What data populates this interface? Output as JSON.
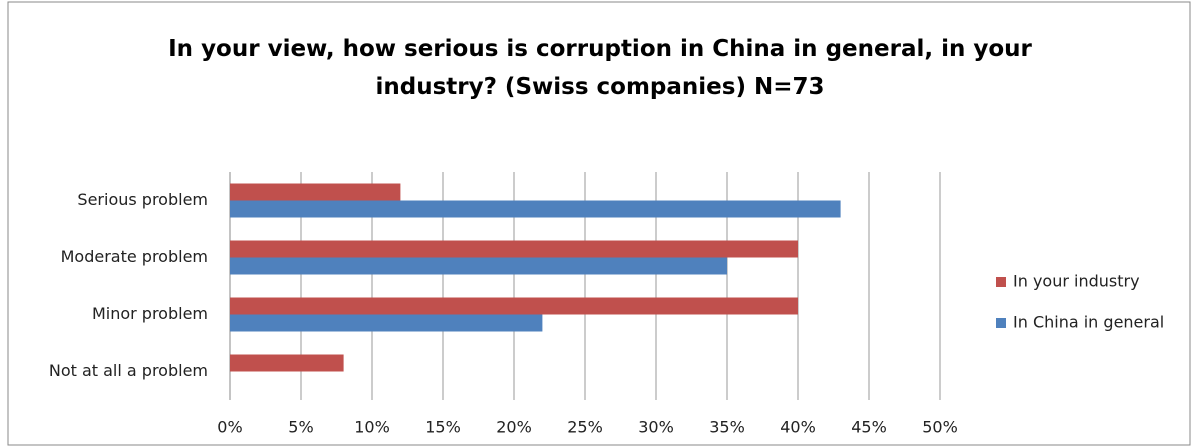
{
  "chart_data": {
    "type": "hbar",
    "title": "In your view, how serious is corruption in China in general, in your industry? (Swiss companies) N=73",
    "categories": [
      "Serious problem",
      "Moderate problem",
      "Minor problem",
      "Not at all a problem"
    ],
    "series": [
      {
        "name": "In your industry",
        "color": "#c0504d",
        "values": [
          12,
          40,
          40,
          8
        ]
      },
      {
        "name": "In China in general",
        "color": "#4f81bd",
        "values": [
          43,
          35,
          22,
          0
        ]
      }
    ],
    "xlim": [
      0,
      50
    ],
    "xticks": [
      {
        "value": 0,
        "label": "0%"
      },
      {
        "value": 5,
        "label": "5%"
      },
      {
        "value": 10,
        "label": "10%"
      },
      {
        "value": 15,
        "label": "15%"
      },
      {
        "value": 20,
        "label": "20%"
      },
      {
        "value": 25,
        "label": "25%"
      },
      {
        "value": 30,
        "label": "30%"
      },
      {
        "value": 35,
        "label": "35%"
      },
      {
        "value": 40,
        "label": "40%"
      },
      {
        "value": 45,
        "label": "45%"
      },
      {
        "value": 50,
        "label": "50%"
      }
    ],
    "grid": true,
    "legend": "right"
  }
}
